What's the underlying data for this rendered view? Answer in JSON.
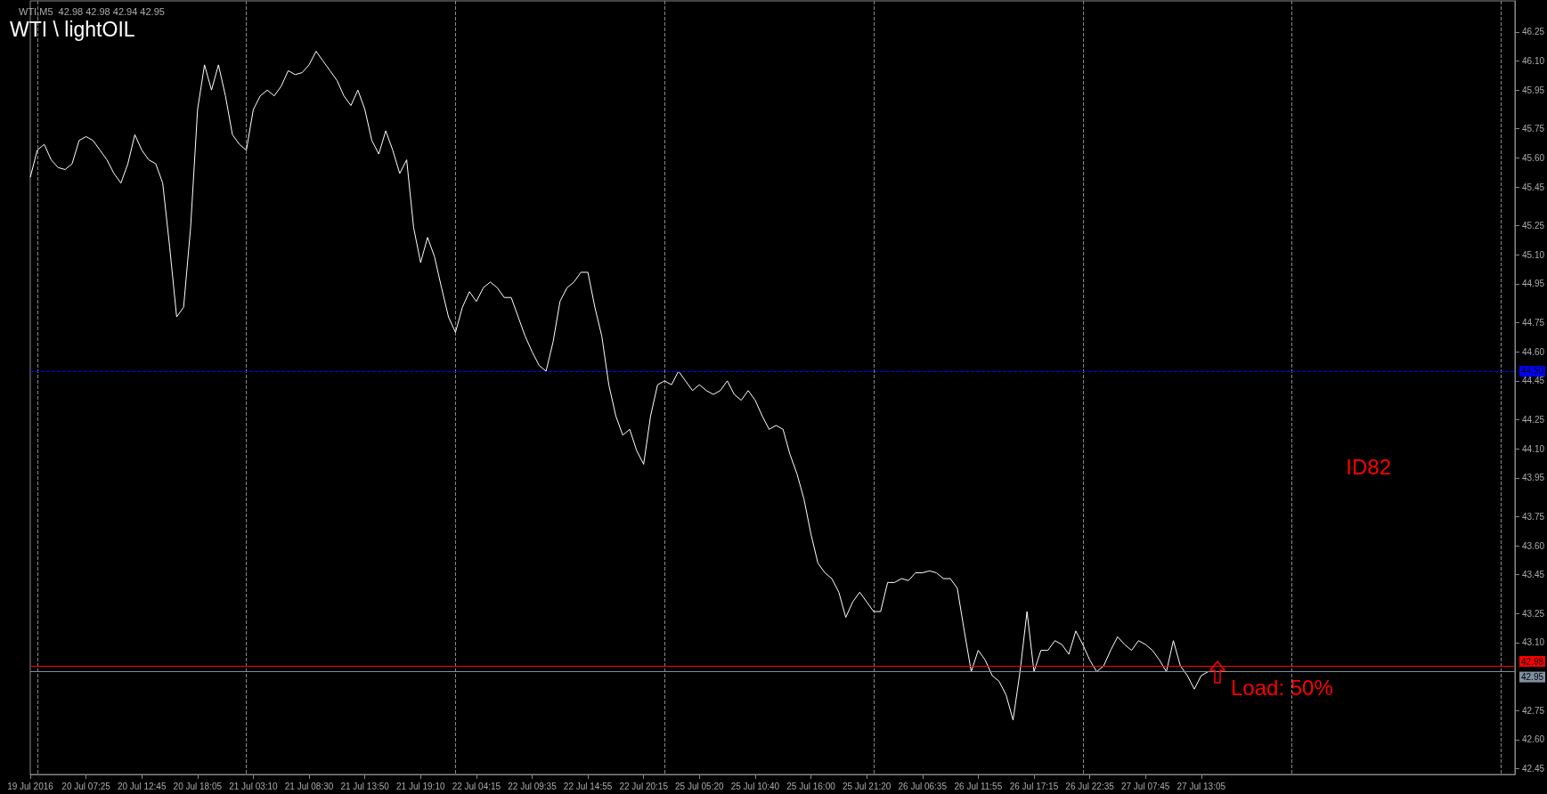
{
  "chart_data": {
    "type": "line",
    "title": "WTI \\ lightOIL",
    "subtitle": "WTI,M5  42.98 42.98 42.94 42.95",
    "categories": [
      "19 Jul 2016",
      null,
      null,
      null,
      null,
      null,
      null,
      null,
      "20 Jul 07:25",
      null,
      null,
      null,
      null,
      null,
      null,
      null,
      "20 Jul 12:45",
      null,
      null,
      null,
      null,
      null,
      null,
      null,
      "20 Jul 18:05",
      null,
      null,
      null,
      null,
      null,
      null,
      null,
      "21 Jul 03:10",
      null,
      null,
      null,
      null,
      null,
      null,
      null,
      "21 Jul 08:30",
      null,
      null,
      null,
      null,
      null,
      null,
      null,
      "21 Jul 13:50",
      null,
      null,
      null,
      null,
      null,
      null,
      null,
      "21 Jul 19:10",
      null,
      null,
      null,
      null,
      null,
      null,
      null,
      "22 Jul 04:15",
      null,
      null,
      null,
      null,
      null,
      null,
      null,
      "22 Jul 09:35",
      null,
      null,
      null,
      null,
      null,
      null,
      null,
      "22 Jul 14:55",
      null,
      null,
      null,
      null,
      null,
      null,
      null,
      "22 Jul 20:15",
      null,
      null,
      null,
      null,
      null,
      null,
      null,
      "25 Jul 05:20",
      null,
      null,
      null,
      null,
      null,
      null,
      null,
      "25 Jul 10:40",
      null,
      null,
      null,
      null,
      null,
      null,
      null,
      "25 Jul 16:00",
      null,
      null,
      null,
      null,
      null,
      null,
      null,
      "25 Jul 21:20",
      null,
      null,
      null,
      null,
      null,
      null,
      null,
      "26 Jul 06:35",
      null,
      null,
      null,
      null,
      null,
      null,
      null,
      "26 Jul 11:55",
      null,
      null,
      null,
      null,
      null,
      null,
      null,
      "26 Jul 17:15",
      null,
      null,
      null,
      null,
      null,
      null,
      null,
      "26 Jul 22:35",
      null,
      null,
      null,
      null,
      null,
      null,
      null,
      "27 Jul 07:45",
      null,
      null,
      null,
      null,
      null,
      null,
      null,
      "27 Jul 13:05",
      null,
      null,
      null,
      null,
      null,
      null,
      null,
      null,
      null,
      null,
      null,
      null,
      null,
      null,
      null,
      null,
      null,
      null,
      null,
      null,
      null,
      null,
      null,
      null,
      null,
      null,
      null,
      null,
      null,
      null,
      null,
      null,
      null,
      null,
      null,
      null,
      null,
      null,
      null,
      null,
      null,
      null,
      null,
      null,
      null
    ],
    "series": [
      {
        "color": "#ffffff",
        "values": [
          45.5,
          45.64,
          45.67,
          45.59,
          45.55,
          45.54,
          45.57,
          45.69,
          45.71,
          45.69,
          45.64,
          45.59,
          45.52,
          45.47,
          45.57,
          45.72,
          45.64,
          45.59,
          45.57,
          45.47,
          45.14,
          44.78,
          44.83,
          45.24,
          45.85,
          46.08,
          45.95,
          46.08,
          45.92,
          45.72,
          45.67,
          45.64,
          45.85,
          45.92,
          45.95,
          45.92,
          45.97,
          46.05,
          46.03,
          46.04,
          46.08,
          46.15,
          46.1,
          46.05,
          46.0,
          45.92,
          45.87,
          45.95,
          45.85,
          45.69,
          45.62,
          45.74,
          45.64,
          45.52,
          45.59,
          45.24,
          45.06,
          45.19,
          45.09,
          44.93,
          44.78,
          44.7,
          44.83,
          44.91,
          44.86,
          44.93,
          44.96,
          44.93,
          44.88,
          44.88,
          44.78,
          44.68,
          44.6,
          44.53,
          44.5,
          44.65,
          44.86,
          44.93,
          44.96,
          45.01,
          45.01,
          44.83,
          44.68,
          44.43,
          44.27,
          44.17,
          44.2,
          44.09,
          44.02,
          44.27,
          44.43,
          44.45,
          44.43,
          44.5,
          44.45,
          44.4,
          44.43,
          44.4,
          44.38,
          44.4,
          44.45,
          44.38,
          44.35,
          44.4,
          44.35,
          44.27,
          44.2,
          44.22,
          44.2,
          44.07,
          43.97,
          43.84,
          43.66,
          43.51,
          43.46,
          43.43,
          43.36,
          43.23,
          43.31,
          43.36,
          43.31,
          43.26,
          43.26,
          43.41,
          43.41,
          43.43,
          43.42,
          43.46,
          43.46,
          43.47,
          43.46,
          43.43,
          43.43,
          43.38,
          43.16,
          42.95,
          43.06,
          43.01,
          42.93,
          42.9,
          42.83,
          42.7,
          42.95,
          43.26,
          42.95,
          43.06,
          43.06,
          43.11,
          43.09,
          43.04,
          43.16,
          43.09,
          43.01,
          42.95,
          42.98,
          43.06,
          43.13,
          43.09,
          43.06,
          43.11,
          43.09,
          43.06,
          43.01,
          42.95,
          43.11,
          42.98,
          42.93,
          42.86,
          42.93,
          42.95,
          42.95,
          null,
          null,
          null,
          null,
          null,
          null,
          null,
          null,
          null,
          null,
          null,
          null,
          null,
          null,
          null,
          null,
          null,
          null,
          null,
          null,
          null,
          null,
          null,
          null,
          null,
          null,
          null,
          null,
          null,
          null,
          null,
          null,
          null,
          null,
          null,
          null,
          null,
          null,
          null,
          null,
          null,
          null,
          null
        ]
      }
    ],
    "ylim": [
      42.42,
      46.41
    ],
    "yticks": [
      46.25,
      {
        "value": 46.1,
        "label": "46.10"
      },
      45.95,
      45.75,
      {
        "value": 45.6,
        "label": "45.60"
      },
      45.45,
      45.25,
      {
        "value": 45.1,
        "label": "45.10"
      },
      44.95,
      44.75,
      {
        "value": 44.6,
        "label": "44.60"
      },
      44.45,
      44.25,
      {
        "value": 44.1,
        "label": "44.10"
      },
      43.95,
      43.75,
      {
        "value": 43.6,
        "label": "43.60"
      },
      43.45,
      43.25,
      {
        "value": 43.1,
        "label": "43.10"
      },
      42.75,
      {
        "value": 42.6,
        "label": "42.60"
      },
      42.45
    ],
    "ref_lines": [
      {
        "axis": "y",
        "value": 44.5,
        "label": "44.50",
        "color": "#0000ff",
        "line_style": "dashed"
      },
      {
        "axis": "y",
        "value": 42.98,
        "label": "42.98",
        "color": "#ff0000",
        "line_style": "solid"
      },
      {
        "axis": "y",
        "value": 42.95,
        "label": "42.95",
        "color": "#8090a0",
        "line_style": "solid"
      }
    ],
    "annotations": [
      "ID82",
      "Load: 50%"
    ],
    "grid": "x",
    "marker": "none",
    "line_style": "solid"
  }
}
